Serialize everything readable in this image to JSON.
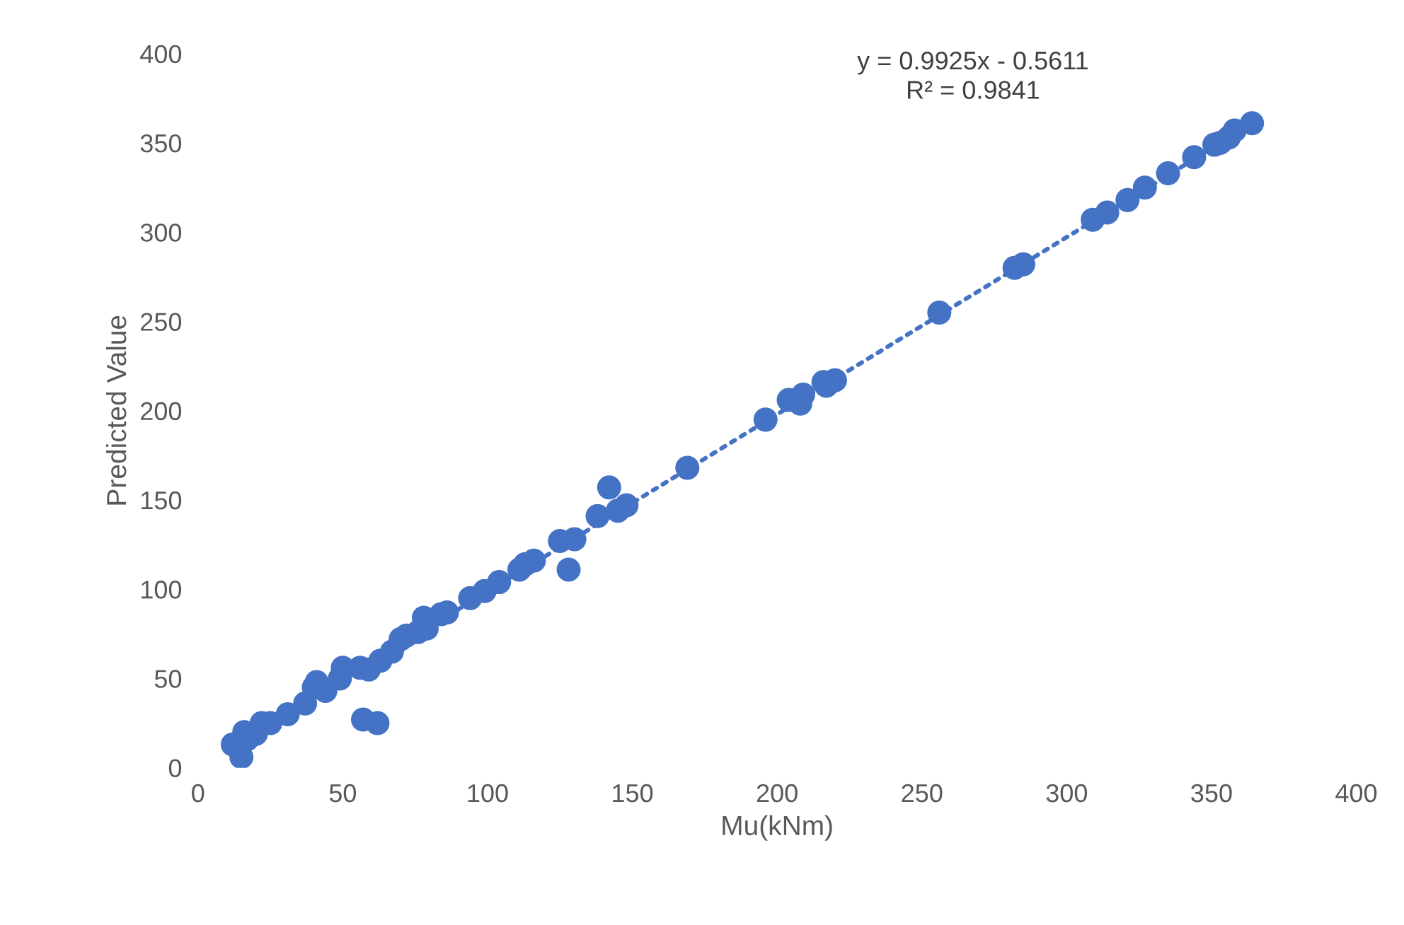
{
  "chart_data": {
    "type": "scatter",
    "xlabel": "Mu(kNm)",
    "ylabel": "Predicted Value",
    "xlim": [
      0,
      400
    ],
    "ylim": [
      0,
      400
    ],
    "xticks": [
      0,
      50,
      100,
      150,
      200,
      250,
      300,
      350,
      400
    ],
    "yticks": [
      0,
      50,
      100,
      150,
      200,
      250,
      300,
      350,
      400
    ],
    "grid": false,
    "legend": false,
    "annotations": [
      "y = 0.9925x - 0.5611\nR² = 0.9841"
    ],
    "series": [
      {
        "color": "#4472c4",
        "marker": "circle",
        "x": [
          12,
          15,
          16,
          17,
          20,
          22,
          25,
          31,
          37,
          40,
          41,
          44,
          49,
          50,
          56,
          57,
          59,
          62,
          63,
          67,
          70,
          72,
          76,
          78,
          79,
          84,
          86,
          94,
          99,
          104,
          111,
          113,
          116,
          125,
          128,
          130,
          138,
          142,
          145,
          148,
          169,
          196,
          204,
          208,
          209,
          216,
          217,
          220,
          256,
          282,
          285,
          309,
          314,
          321,
          327,
          335,
          344,
          351,
          353,
          356,
          358,
          364
        ],
        "values": [
          13,
          6,
          20,
          16,
          19,
          25,
          25,
          30,
          36,
          45,
          48,
          43,
          50,
          56,
          56,
          27,
          55,
          25,
          60,
          65,
          72,
          74,
          76,
          84,
          78,
          86,
          87,
          95,
          99,
          104,
          111,
          114,
          116,
          127,
          111,
          128,
          141,
          157,
          144,
          147,
          168,
          195,
          206,
          204,
          209,
          216,
          214,
          217,
          255,
          280,
          282,
          307,
          311,
          318,
          325,
          333,
          342,
          349,
          350,
          353,
          357,
          361
        ]
      },
      {
        "type": "line",
        "color": "#4472c4",
        "marker": "none",
        "line_style": "dotted",
        "x": [
          12,
          364
        ],
        "values": [
          11.4,
          360.7
        ]
      }
    ]
  }
}
